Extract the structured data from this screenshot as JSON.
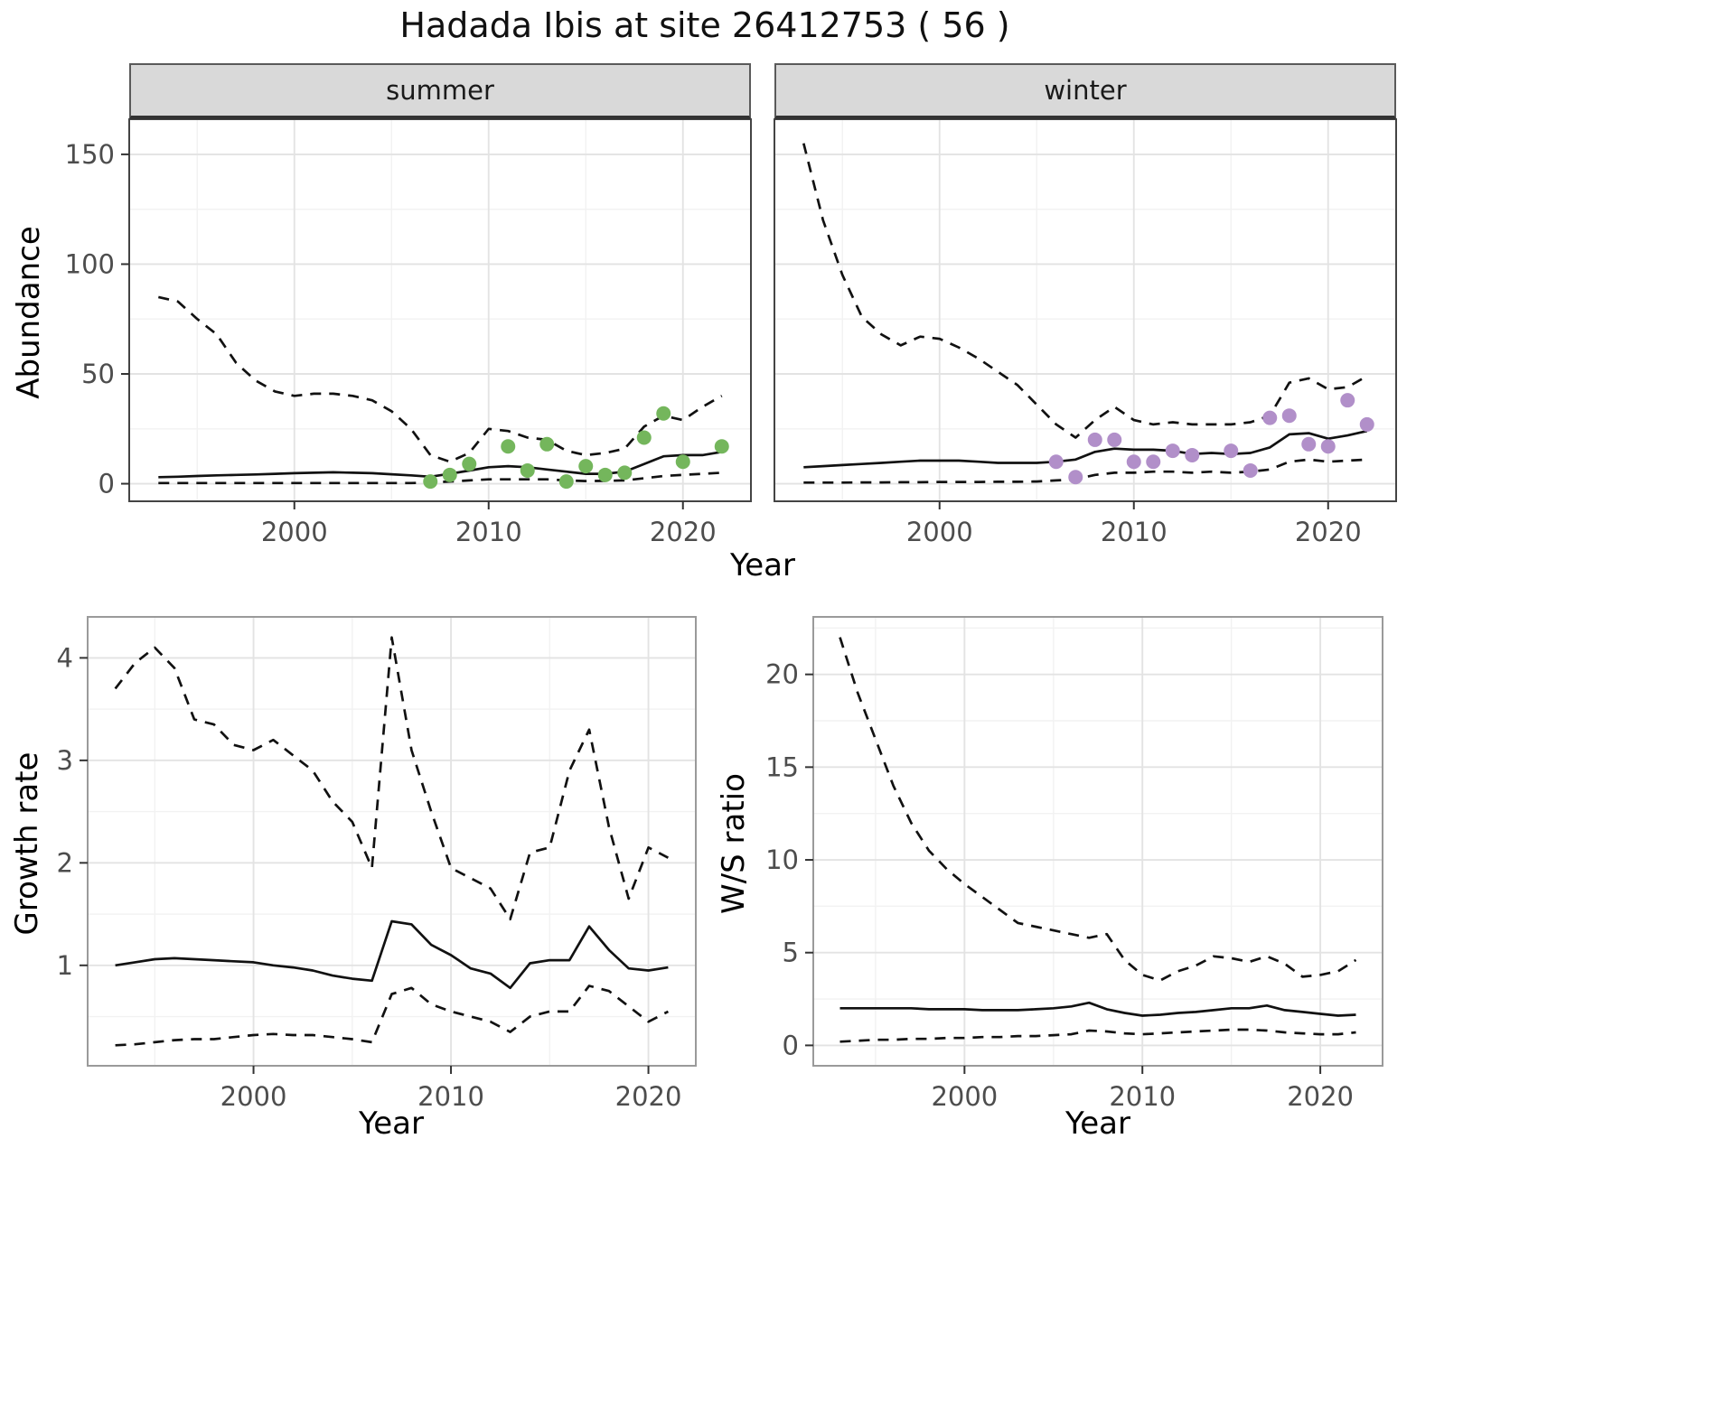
{
  "title": "Hadada Ibis at site 26412753 ( 56 )",
  "colors": {
    "line": "#111111",
    "strip_background": "#d9d9d9",
    "points_summer": "#74b65c",
    "points_winter": "#b18fc9",
    "grid_major": "#e3e3e3",
    "grid_minor": "#f2f2f2",
    "tick_label": "#4d4d4d"
  },
  "chart_data": [
    {
      "id": "abundance",
      "type": "line",
      "xlabel": "Year",
      "ylabel": "Abundance",
      "xlim": [
        1991.5,
        2023.5
      ],
      "ylim": [
        -8,
        166
      ],
      "x_ticks": [
        2000,
        2010,
        2020
      ],
      "y_ticks": [
        0,
        50,
        100,
        150
      ],
      "grid": true,
      "legend": "none",
      "facets": [
        {
          "label": "summer",
          "x": [
            1993,
            1994,
            1995,
            1996,
            1997,
            1998,
            1999,
            2000,
            2001,
            2002,
            2003,
            2004,
            2005,
            2006,
            2007,
            2008,
            2009,
            2010,
            2011,
            2012,
            2013,
            2014,
            2015,
            2016,
            2017,
            2018,
            2019,
            2020,
            2021,
            2022
          ],
          "series": [
            {
              "name": "upper_ci",
              "style": "dashed",
              "values": [
                85,
                83,
                75,
                68,
                55,
                47,
                42,
                40,
                41,
                41,
                40,
                38,
                33,
                25,
                13,
                10,
                14,
                25,
                24,
                21,
                20,
                15,
                13,
                14,
                16,
                26,
                31,
                29,
                35,
                40
              ]
            },
            {
              "name": "mean",
              "style": "solid",
              "values": [
                3,
                3.2,
                3.5,
                3.8,
                4,
                4.2,
                4.5,
                4.8,
                5,
                5.2,
                5,
                4.8,
                4.3,
                3.8,
                3.2,
                4.5,
                6,
                7.5,
                8,
                7.5,
                6.5,
                5.5,
                4.5,
                4.5,
                5.5,
                9,
                12.5,
                13,
                13,
                14.5
              ]
            },
            {
              "name": "lower_ci",
              "style": "dashed",
              "values": [
                0.3,
                0.3,
                0.3,
                0.3,
                0.3,
                0.3,
                0.3,
                0.3,
                0.3,
                0.3,
                0.3,
                0.3,
                0.3,
                0.3,
                0.5,
                1,
                1.5,
                2,
                2,
                2,
                2,
                1.5,
                1.2,
                1.3,
                1.5,
                2.5,
                3.5,
                4,
                4.5,
                5
              ]
            }
          ],
          "points": {
            "color": "#74b65c",
            "x": [
              2007,
              2008,
              2009,
              2011,
              2012,
              2013,
              2014,
              2015,
              2016,
              2017,
              2018,
              2019,
              2020,
              2022
            ],
            "y": [
              1,
              4,
              9,
              17,
              6,
              18,
              1,
              8,
              4,
              5,
              21,
              32,
              10,
              17
            ]
          }
        },
        {
          "label": "winter",
          "x": [
            1993,
            1994,
            1995,
            1996,
            1997,
            1998,
            1999,
            2000,
            2001,
            2002,
            2003,
            2004,
            2005,
            2006,
            2007,
            2008,
            2009,
            2010,
            2011,
            2012,
            2013,
            2014,
            2015,
            2016,
            2017,
            2018,
            2019,
            2020,
            2021,
            2022
          ],
          "series": [
            {
              "name": "upper_ci",
              "style": "dashed",
              "values": [
                155,
                120,
                95,
                76,
                68,
                63,
                67,
                66,
                62,
                57,
                51,
                45,
                36,
                27,
                21,
                29,
                35,
                29,
                27,
                28,
                27,
                27,
                27,
                28,
                31,
                46,
                48,
                43,
                44,
                49
              ]
            },
            {
              "name": "mean",
              "style": "solid",
              "values": [
                7.5,
                8,
                8.5,
                9,
                9.5,
                10,
                10.5,
                10.5,
                10.5,
                10,
                9.5,
                9.5,
                9.5,
                10,
                11,
                14.5,
                16,
                15.5,
                15.5,
                15,
                13.5,
                14,
                13.5,
                14,
                16.5,
                22.5,
                23,
                20.5,
                22,
                24
              ]
            },
            {
              "name": "lower_ci",
              "style": "dashed",
              "values": [
                0.5,
                0.5,
                0.5,
                0.6,
                0.6,
                0.7,
                0.7,
                0.8,
                0.8,
                0.8,
                0.9,
                0.9,
                1,
                1.5,
                2,
                4,
                5,
                5,
                5.5,
                5.5,
                5,
                5.5,
                5,
                5.5,
                6.5,
                10,
                11,
                10,
                10.5,
                11
              ]
            }
          ],
          "points": {
            "color": "#b18fc9",
            "x": [
              2006,
              2007,
              2008,
              2009,
              2010,
              2011,
              2012,
              2013,
              2015,
              2016,
              2017,
              2018,
              2019,
              2020,
              2021,
              2022
            ],
            "y": [
              10,
              3,
              20,
              20,
              10,
              10,
              15,
              13,
              15,
              6,
              30,
              31,
              18,
              17,
              38,
              27
            ]
          }
        }
      ]
    },
    {
      "id": "growth_rate",
      "type": "line",
      "xlabel": "Year",
      "ylabel": "Growth rate",
      "xlim": [
        1991.6,
        2022.4
      ],
      "ylim": [
        0.02,
        4.4
      ],
      "x_ticks": [
        2000,
        2010,
        2020
      ],
      "y_ticks": [
        1,
        2,
        3,
        4
      ],
      "grid": true,
      "legend": "none",
      "x": [
        1993,
        1994,
        1995,
        1996,
        1997,
        1998,
        1999,
        2000,
        2001,
        2002,
        2003,
        2004,
        2005,
        2006,
        2007,
        2008,
        2009,
        2010,
        2011,
        2012,
        2013,
        2014,
        2015,
        2016,
        2017,
        2018,
        2019,
        2020,
        2021
      ],
      "series": [
        {
          "name": "upper_ci",
          "style": "dashed",
          "values": [
            3.7,
            3.95,
            4.1,
            3.9,
            3.4,
            3.35,
            3.15,
            3.1,
            3.2,
            3.05,
            2.9,
            2.6,
            2.4,
            1.95,
            4.2,
            3.1,
            2.5,
            1.95,
            1.85,
            1.75,
            1.45,
            2.1,
            2.15,
            2.9,
            3.3,
            2.35,
            1.65,
            2.15,
            2.05
          ]
        },
        {
          "name": "mean",
          "style": "solid",
          "values": [
            1.0,
            1.03,
            1.06,
            1.07,
            1.06,
            1.05,
            1.04,
            1.03,
            1.0,
            0.98,
            0.95,
            0.9,
            0.87,
            0.85,
            1.43,
            1.4,
            1.2,
            1.1,
            0.97,
            0.92,
            0.78,
            1.02,
            1.05,
            1.05,
            1.38,
            1.15,
            0.97,
            0.95,
            0.98
          ]
        },
        {
          "name": "lower_ci",
          "style": "dashed",
          "values": [
            0.22,
            0.23,
            0.25,
            0.27,
            0.28,
            0.28,
            0.3,
            0.32,
            0.33,
            0.32,
            0.32,
            0.3,
            0.28,
            0.25,
            0.72,
            0.78,
            0.62,
            0.55,
            0.5,
            0.45,
            0.35,
            0.5,
            0.55,
            0.55,
            0.8,
            0.75,
            0.6,
            0.45,
            0.55
          ]
        }
      ]
    },
    {
      "id": "ws_ratio",
      "type": "line",
      "xlabel": "Year",
      "ylabel": "W/S ratio",
      "xlim": [
        1991.5,
        2023.5
      ],
      "ylim": [
        -1.1,
        23.1
      ],
      "x_ticks": [
        2000,
        2010,
        2020
      ],
      "y_ticks": [
        0,
        5,
        10,
        15,
        20
      ],
      "grid": true,
      "legend": "none",
      "x": [
        1993,
        1994,
        1995,
        1996,
        1997,
        1998,
        1999,
        2000,
        2001,
        2002,
        2003,
        2004,
        2005,
        2006,
        2007,
        2008,
        2009,
        2010,
        2011,
        2012,
        2013,
        2014,
        2015,
        2016,
        2017,
        2018,
        2019,
        2020,
        2021,
        2022
      ],
      "series": [
        {
          "name": "upper_ci",
          "style": "dashed",
          "values": [
            22,
            19,
            16.5,
            14,
            12,
            10.5,
            9.5,
            8.7,
            8,
            7.3,
            6.6,
            6.4,
            6.2,
            6.0,
            5.8,
            6.0,
            4.6,
            3.8,
            3.5,
            4.0,
            4.3,
            4.8,
            4.7,
            4.5,
            4.8,
            4.4,
            3.7,
            3.8,
            4.0,
            4.6
          ]
        },
        {
          "name": "mean",
          "style": "solid",
          "values": [
            2.0,
            2.0,
            2.0,
            2.0,
            2.0,
            1.95,
            1.95,
            1.95,
            1.9,
            1.9,
            1.9,
            1.95,
            2.0,
            2.1,
            2.3,
            1.95,
            1.75,
            1.6,
            1.65,
            1.75,
            1.8,
            1.9,
            2.0,
            2.0,
            2.15,
            1.9,
            1.8,
            1.7,
            1.6,
            1.65
          ]
        },
        {
          "name": "lower_ci",
          "style": "dashed",
          "values": [
            0.2,
            0.25,
            0.3,
            0.3,
            0.35,
            0.35,
            0.4,
            0.4,
            0.45,
            0.45,
            0.5,
            0.5,
            0.55,
            0.6,
            0.8,
            0.75,
            0.65,
            0.6,
            0.65,
            0.7,
            0.75,
            0.8,
            0.85,
            0.85,
            0.8,
            0.7,
            0.65,
            0.6,
            0.6,
            0.7
          ]
        }
      ]
    }
  ]
}
